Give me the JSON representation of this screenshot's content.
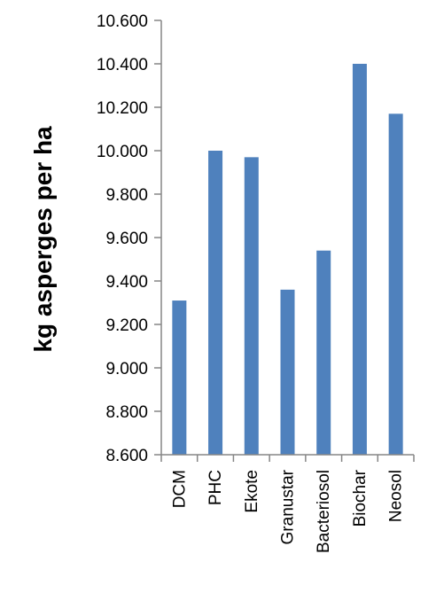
{
  "chart_data": {
    "type": "bar",
    "title": "",
    "xlabel": "",
    "ylabel": "kg asperges per ha",
    "categories": [
      "DCM",
      "PHC",
      "Ekote",
      "Granustar",
      "Bacteriosol",
      "Biochar",
      "Neosol"
    ],
    "values": [
      9310,
      10000,
      9970,
      9360,
      9540,
      10400,
      10170
    ],
    "ylim": [
      8600,
      10600
    ],
    "yticks": [
      {
        "value": 8600,
        "label": "8.600"
      },
      {
        "value": 8800,
        "label": "8.800"
      },
      {
        "value": 9000,
        "label": "9.000"
      },
      {
        "value": 9200,
        "label": "9.200"
      },
      {
        "value": 9400,
        "label": "9.400"
      },
      {
        "value": 9600,
        "label": "9.600"
      },
      {
        "value": 9800,
        "label": "9.800"
      },
      {
        "value": 10000,
        "label": "10.000"
      },
      {
        "value": 10200,
        "label": "10.200"
      },
      {
        "value": 10400,
        "label": "10.400"
      },
      {
        "value": 10600,
        "label": "10.600"
      }
    ],
    "grid": false,
    "legend": "none",
    "bar_color": "#4f81bd",
    "axis_color": "#868686"
  }
}
